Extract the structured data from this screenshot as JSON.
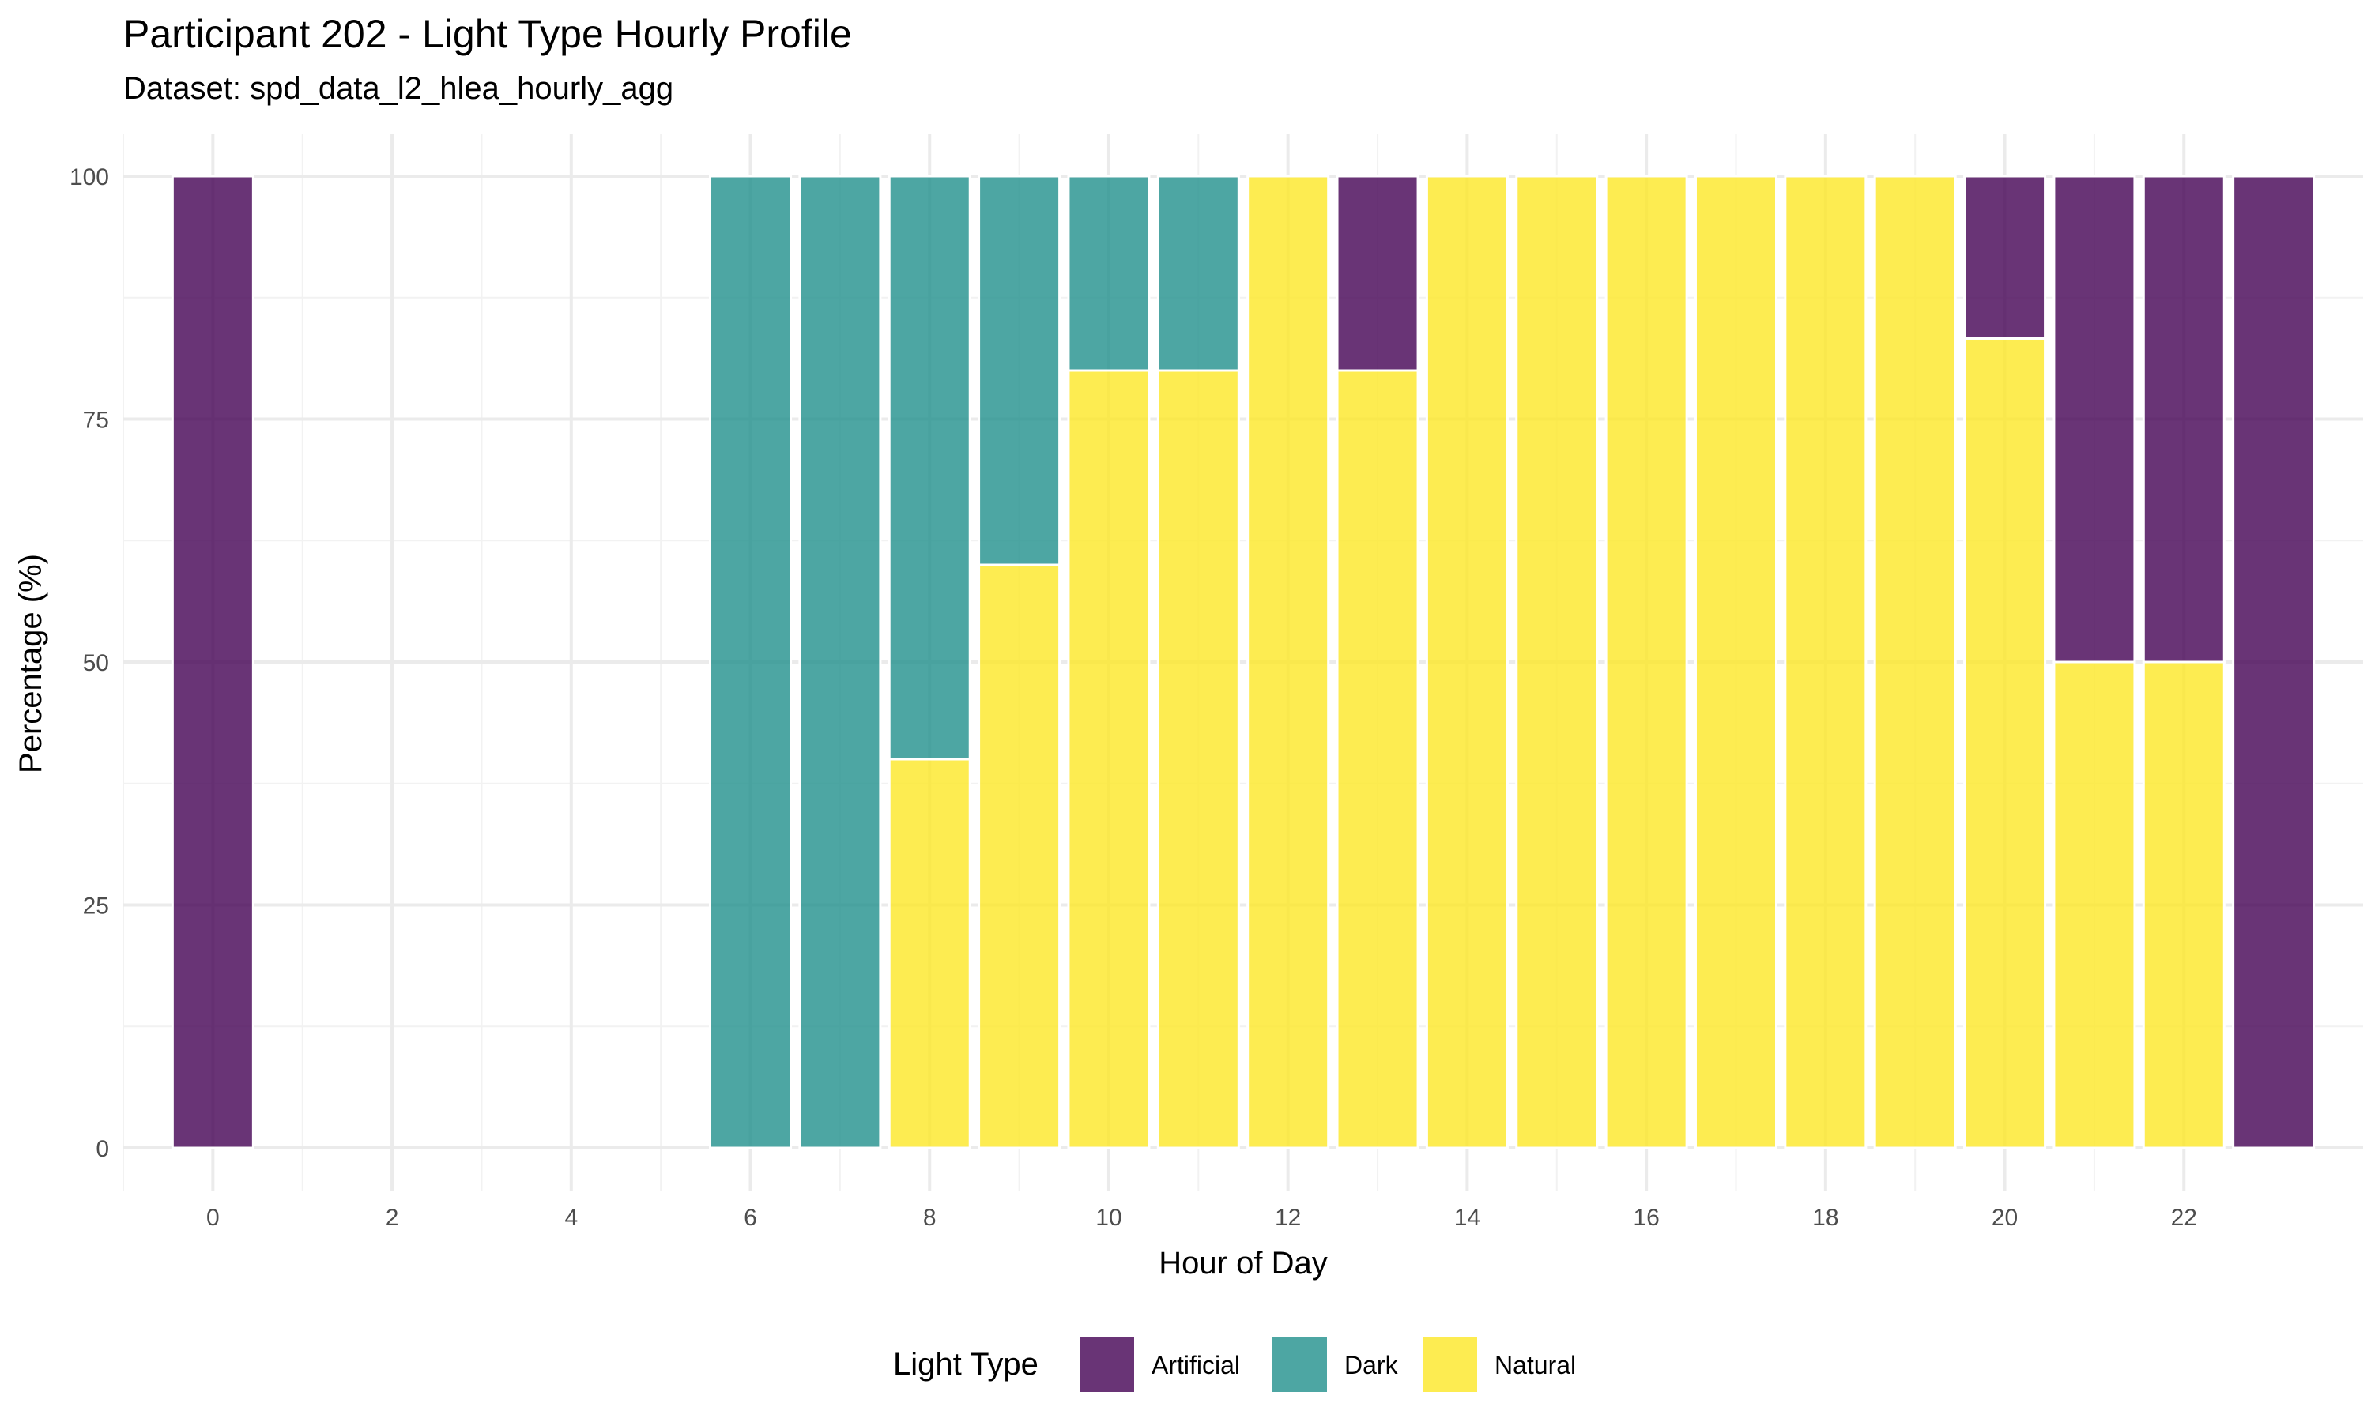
{
  "chart_data": {
    "type": "bar",
    "stacked": true,
    "title": "Participant 202 - Light Type Hourly Profile",
    "subtitle": "Dataset: spd_data_l2_hlea_hourly_agg",
    "xlabel": "Hour of Day",
    "ylabel": "Percentage (%)",
    "xlim": [
      -1,
      24
    ],
    "ylim": [
      0,
      100
    ],
    "x_ticks": [
      "0",
      "2",
      "4",
      "6",
      "8",
      "10",
      "12",
      "14",
      "16",
      "18",
      "20",
      "22"
    ],
    "y_ticks": [
      "0",
      "25",
      "50",
      "75",
      "100"
    ],
    "grid": true,
    "legend_position": "bottom",
    "legend_title": "Light Type",
    "x": [
      0,
      6,
      7,
      8,
      9,
      10,
      11,
      12,
      13,
      14,
      15,
      16,
      17,
      18,
      19,
      20,
      21,
      22,
      23
    ],
    "series": [
      {
        "name": "Artificial",
        "color": "#440154",
        "values": [
          100,
          0,
          0,
          0,
          0,
          0,
          0,
          0,
          20,
          0,
          0,
          0,
          0,
          0,
          0,
          16.7,
          50,
          50,
          100
        ]
      },
      {
        "name": "Dark",
        "color": "#21908C",
        "values": [
          0,
          100,
          100,
          60,
          40,
          20,
          20,
          0,
          0,
          0,
          0,
          0,
          0,
          0,
          0,
          0,
          0,
          0,
          0
        ]
      },
      {
        "name": "Natural",
        "color": "#FDE725",
        "values": [
          0,
          0,
          0,
          40,
          60,
          80,
          80,
          100,
          80,
          100,
          100,
          100,
          100,
          100,
          100,
          83.3,
          50,
          50,
          0
        ]
      }
    ]
  }
}
